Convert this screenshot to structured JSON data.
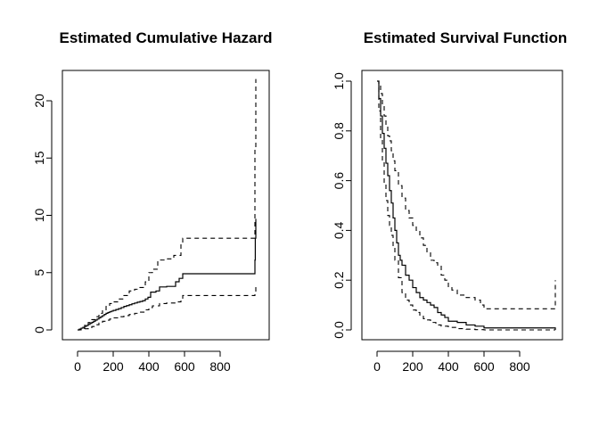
{
  "chart_data": [
    {
      "type": "line",
      "title": "Estimated Cumulative Hazard",
      "xlabel": "",
      "ylabel": "",
      "xlim": [
        0,
        1000
      ],
      "ylim": [
        0,
        22
      ],
      "x_ticks": [
        "0",
        "200",
        "400",
        "600",
        "800"
      ],
      "x_tick_values": [
        0,
        200,
        400,
        600,
        800
      ],
      "y_ticks": [
        "0",
        "5",
        "10",
        "15",
        "20"
      ],
      "y_tick_values": [
        0,
        5,
        10,
        15,
        20
      ],
      "series": [
        {
          "style": "solid",
          "x": [
            0,
            10,
            20,
            30,
            40,
            50,
            60,
            70,
            80,
            90,
            100,
            110,
            120,
            130,
            140,
            150,
            160,
            170,
            180,
            190,
            200,
            215,
            230,
            245,
            260,
            275,
            290,
            305,
            320,
            335,
            350,
            365,
            380,
            395,
            410,
            440,
            460,
            500,
            550,
            570,
            590,
            700,
            800,
            990,
            995,
            997,
            1000
          ],
          "y": [
            0,
            0.07,
            0.15,
            0.23,
            0.31,
            0.39,
            0.48,
            0.57,
            0.66,
            0.76,
            0.85,
            0.95,
            1.05,
            1.15,
            1.25,
            1.35,
            1.45,
            1.52,
            1.58,
            1.64,
            1.7,
            1.78,
            1.86,
            1.95,
            2.05,
            2.12,
            2.2,
            2.28,
            2.35,
            2.42,
            2.48,
            2.55,
            2.7,
            2.85,
            3.3,
            3.4,
            3.75,
            3.8,
            4.2,
            4.5,
            4.9,
            4.9,
            4.9,
            4.9,
            6.1,
            8.0,
            9.7
          ]
        },
        {
          "style": "dashed",
          "x": [
            0,
            20,
            40,
            60,
            80,
            100,
            120,
            140,
            160,
            180,
            200,
            230,
            260,
            290,
            320,
            350,
            380,
            400,
            420,
            450,
            500,
            540,
            580,
            590,
            700,
            800,
            990,
            995,
            1000
          ],
          "y": [
            0,
            0.15,
            0.4,
            0.65,
            0.9,
            1.15,
            1.45,
            1.75,
            2.05,
            2.3,
            2.45,
            2.7,
            3.0,
            3.4,
            3.55,
            3.7,
            4.2,
            5.0,
            5.3,
            6.1,
            6.2,
            6.5,
            7.5,
            8.0,
            8.0,
            8.0,
            8.0,
            16.0,
            21.9
          ]
        },
        {
          "style": "dashed",
          "x": [
            0,
            20,
            40,
            60,
            80,
            100,
            120,
            140,
            160,
            180,
            200,
            230,
            260,
            290,
            320,
            350,
            380,
            400,
            420,
            460,
            500,
            550,
            580,
            590,
            700,
            800,
            990,
            995,
            1000
          ],
          "y": [
            0,
            0.05,
            0.1,
            0.2,
            0.3,
            0.45,
            0.6,
            0.75,
            0.85,
            0.95,
            1.05,
            1.15,
            1.25,
            1.35,
            1.45,
            1.55,
            1.75,
            1.95,
            2.1,
            2.3,
            2.35,
            2.45,
            2.6,
            3.0,
            3.0,
            3.0,
            3.0,
            3.3,
            4.0
          ]
        }
      ]
    },
    {
      "type": "line",
      "title": "Estimated Survival Function",
      "xlabel": "",
      "ylabel": "",
      "xlim": [
        0,
        1000
      ],
      "ylim": [
        0,
        1
      ],
      "x_ticks": [
        "0",
        "200",
        "400",
        "600",
        "800"
      ],
      "x_tick_values": [
        0,
        200,
        400,
        600,
        800
      ],
      "y_ticks": [
        "0.0",
        "0.2",
        "0.4",
        "0.6",
        "0.8",
        "1.0"
      ],
      "y_tick_values": [
        0,
        0.2,
        0.4,
        0.6,
        0.8,
        1.0
      ],
      "series": [
        {
          "style": "solid",
          "x": [
            0,
            10,
            20,
            30,
            40,
            50,
            60,
            70,
            80,
            90,
            100,
            110,
            120,
            130,
            140,
            160,
            180,
            200,
            220,
            240,
            260,
            280,
            300,
            320,
            340,
            360,
            380,
            400,
            450,
            500,
            550,
            600,
            700,
            800,
            1000
          ],
          "y": [
            1.0,
            0.93,
            0.86,
            0.79,
            0.73,
            0.67,
            0.62,
            0.56,
            0.51,
            0.45,
            0.4,
            0.35,
            0.3,
            0.28,
            0.26,
            0.22,
            0.2,
            0.17,
            0.15,
            0.13,
            0.12,
            0.11,
            0.1,
            0.09,
            0.07,
            0.06,
            0.05,
            0.035,
            0.03,
            0.02,
            0.015,
            0.008,
            0.008,
            0.008,
            0.0
          ]
        },
        {
          "style": "dashed",
          "x": [
            0,
            10,
            20,
            30,
            40,
            50,
            60,
            70,
            80,
            90,
            100,
            120,
            140,
            160,
            180,
            200,
            220,
            240,
            260,
            280,
            300,
            320,
            340,
            360,
            380,
            400,
            420,
            450,
            500,
            550,
            580,
            600,
            700,
            800,
            990,
            1000
          ],
          "y": [
            1.0,
            0.98,
            0.95,
            0.9,
            0.86,
            0.82,
            0.78,
            0.76,
            0.72,
            0.68,
            0.64,
            0.58,
            0.53,
            0.48,
            0.45,
            0.42,
            0.4,
            0.37,
            0.34,
            0.31,
            0.28,
            0.27,
            0.26,
            0.22,
            0.2,
            0.17,
            0.16,
            0.14,
            0.13,
            0.12,
            0.1,
            0.085,
            0.085,
            0.085,
            0.085,
            0.2
          ]
        },
        {
          "style": "dashed",
          "x": [
            0,
            10,
            20,
            30,
            40,
            50,
            60,
            70,
            80,
            90,
            100,
            120,
            140,
            160,
            180,
            200,
            220,
            240,
            260,
            280,
            300,
            330,
            360,
            400,
            450,
            500,
            550,
            600,
            700,
            800,
            1000
          ],
          "y": [
            1.0,
            0.88,
            0.77,
            0.68,
            0.59,
            0.52,
            0.46,
            0.42,
            0.38,
            0.33,
            0.28,
            0.21,
            0.15,
            0.12,
            0.1,
            0.08,
            0.07,
            0.055,
            0.045,
            0.04,
            0.03,
            0.02,
            0.015,
            0.01,
            0.005,
            0.003,
            0.001,
            0.0,
            0.0,
            0.0,
            0.0
          ]
        }
      ]
    }
  ]
}
